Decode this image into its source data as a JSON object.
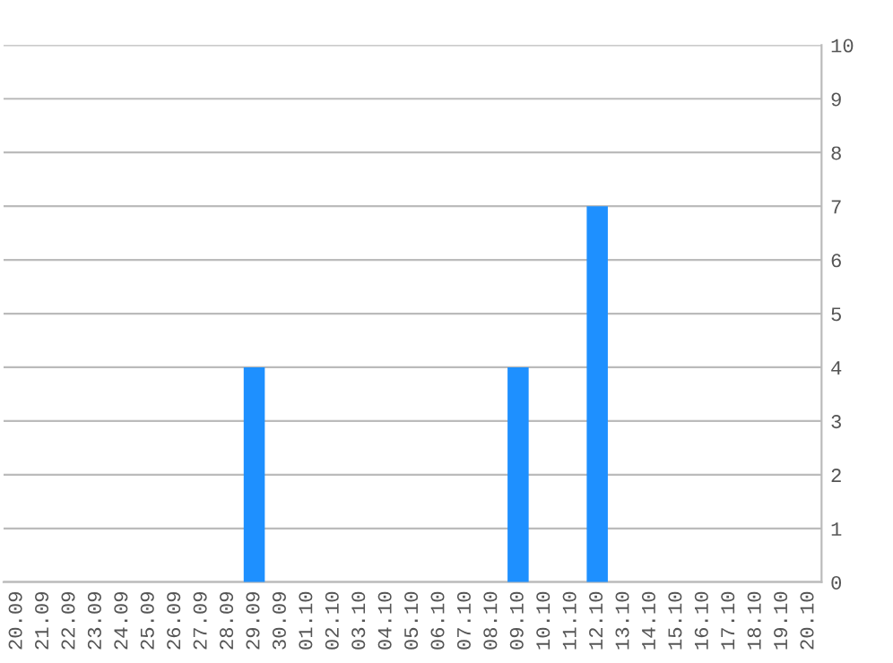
{
  "chart_data": {
    "type": "bar",
    "categories": [
      "20.09",
      "21.09",
      "22.09",
      "23.09",
      "24.09",
      "25.09",
      "26.09",
      "27.09",
      "28.09",
      "29.09",
      "30.09",
      "01.10",
      "02.10",
      "03.10",
      "04.10",
      "05.10",
      "06.10",
      "07.10",
      "08.10",
      "09.10",
      "10.10",
      "11.10",
      "12.10",
      "13.10",
      "14.10",
      "15.10",
      "16.10",
      "17.10",
      "18.10",
      "19.10",
      "20.10"
    ],
    "values": [
      0,
      0,
      0,
      0,
      0,
      0,
      0,
      0,
      0,
      4,
      0,
      0,
      0,
      0,
      0,
      0,
      0,
      0,
      0,
      4,
      0,
      0,
      7,
      0,
      0,
      0,
      0,
      0,
      0,
      0,
      0
    ],
    "color": "#1e90ff",
    "ylim": [
      0,
      10
    ],
    "yticks": [
      0,
      1,
      2,
      3,
      4,
      5,
      6,
      7,
      8,
      9,
      10
    ],
    "grid": "y",
    "legend": false
  }
}
